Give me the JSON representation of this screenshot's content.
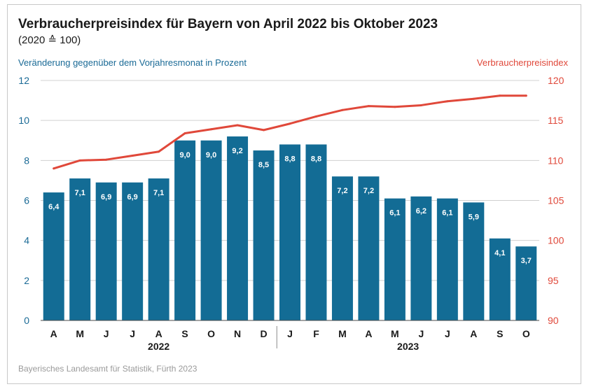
{
  "title": "Verbraucherpreisindex für Bayern von April 2022 bis Oktober 2023",
  "subtitle": "(2020 ≙ 100)",
  "left_axis_label": "Veränderung gegenüber dem Vorjahresmonat in Prozent",
  "right_axis_label": "Verbraucherpreisindex",
  "source": "Bayerisches Landesamt für Statistik, Fürth 2023",
  "colors": {
    "bar": "#136c95",
    "line": "#e0483a",
    "left_axis": "#1a6a96",
    "grid": "#d0d0d0"
  },
  "chart_data": {
    "type": "bar",
    "categories": [
      "A",
      "M",
      "J",
      "J",
      "A",
      "S",
      "O",
      "N",
      "D",
      "J",
      "F",
      "M",
      "A",
      "M",
      "J",
      "J",
      "A",
      "S",
      "O"
    ],
    "years": [
      {
        "label": "2022",
        "start": 0,
        "end": 8
      },
      {
        "label": "2023",
        "start": 9,
        "end": 18
      }
    ],
    "series": [
      {
        "type": "bar",
        "axis": "left",
        "values": [
          6.4,
          7.1,
          6.9,
          6.9,
          7.1,
          9.0,
          9.0,
          9.2,
          8.5,
          8.8,
          8.8,
          7.2,
          7.2,
          6.1,
          6.2,
          6.1,
          5.9,
          4.1,
          3.7
        ],
        "labels": [
          "6,4",
          "7,1",
          "6,9",
          "6,9",
          "7,1",
          "9,0",
          "9,0",
          "9,2",
          "8,5",
          "8,8",
          "8,8",
          "7,2",
          "7,2",
          "6,1",
          "6,2",
          "6,1",
          "5,9",
          "4,1",
          "3,7"
        ]
      },
      {
        "type": "line",
        "axis": "right",
        "values": [
          109.0,
          110.0,
          110.1,
          110.6,
          111.1,
          113.4,
          113.9,
          114.4,
          113.8,
          114.6,
          115.5,
          116.3,
          116.8,
          116.7,
          116.9,
          117.4,
          117.7,
          118.1,
          118.1
        ]
      }
    ],
    "ylim_left": [
      0,
      12
    ],
    "yticks_left": [
      "0",
      "2",
      "4",
      "6",
      "8",
      "10",
      "12"
    ],
    "ylim_right": [
      90,
      120
    ],
    "yticks_right": [
      "90",
      "95",
      "100",
      "105",
      "110",
      "115",
      "120"
    ],
    "grid": true
  }
}
